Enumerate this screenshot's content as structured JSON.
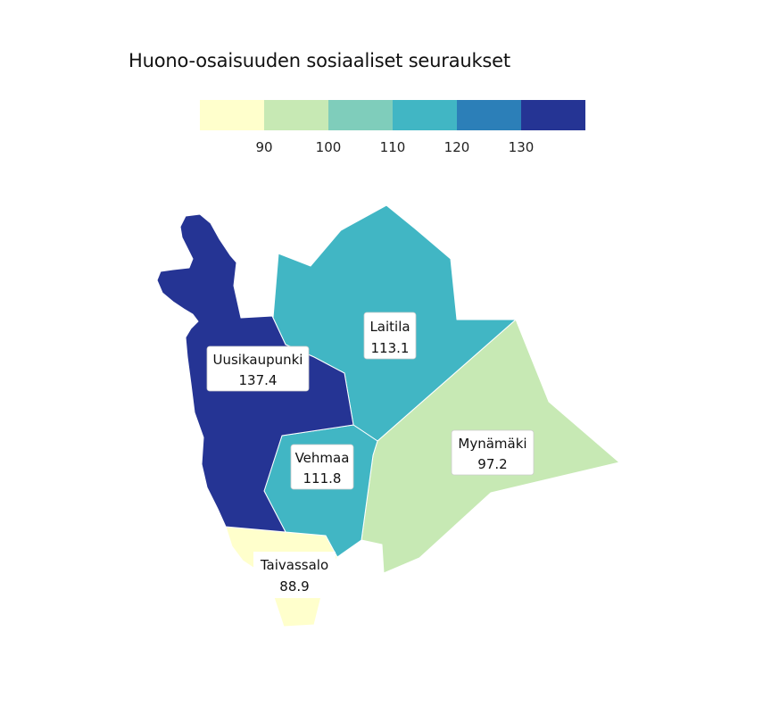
{
  "title": "Huono-osaisuuden sosiaaliset seuraukset",
  "legend": {
    "ticks": [
      "90",
      "100",
      "110",
      "120",
      "130"
    ],
    "colors": [
      "#ffffcc",
      "#c7e9b4",
      "#7fcdbb",
      "#41b6c4",
      "#2c7fb8",
      "#253494"
    ]
  },
  "regions": [
    {
      "name": "Uusikaupunki",
      "value": "137.4",
      "color": "#253494"
    },
    {
      "name": "Laitila",
      "value": "113.1",
      "color": "#41b6c4"
    },
    {
      "name": "Vehmaa",
      "value": "111.8",
      "color": "#41b6c4"
    },
    {
      "name": "Mynämäki",
      "value": "97.2",
      "color": "#c7e9b4"
    },
    {
      "name": "Taivassalo",
      "value": "88.9",
      "color": "#ffffcc"
    }
  ]
}
